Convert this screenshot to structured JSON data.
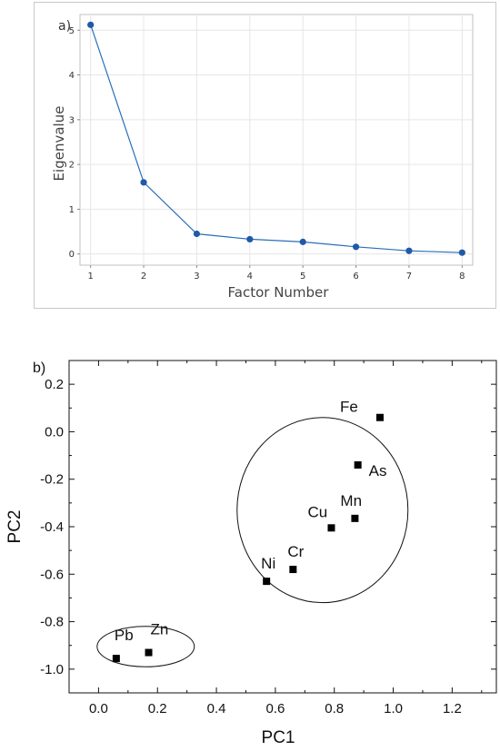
{
  "chart_data": [
    {
      "panel_label": "a)",
      "type": "line",
      "xlabel": "Factor Number",
      "ylabel": "Eigenvalue",
      "x": [
        1,
        2,
        3,
        4,
        5,
        6,
        7,
        8
      ],
      "values": [
        5.12,
        1.6,
        0.45,
        0.33,
        0.27,
        0.16,
        0.07,
        0.03
      ],
      "xlim": [
        0.8,
        8.2
      ],
      "ylim": [
        -0.25,
        5.35
      ],
      "xticks": [
        "1",
        "2",
        "3",
        "4",
        "5",
        "6",
        "7",
        "8"
      ],
      "yticks": [
        "0",
        "1",
        "2",
        "3",
        "4",
        "5"
      ],
      "grid": true,
      "color": "#2a6ebb"
    },
    {
      "panel_label": "b)",
      "type": "scatter",
      "xlabel": "PC1",
      "ylabel": "PC2",
      "xlim": [
        -0.1,
        1.35
      ],
      "ylim": [
        -1.1,
        0.3
      ],
      "xticks": [
        "0.0",
        "0.2",
        "0.4",
        "0.6",
        "0.8",
        "1.0",
        "1.2"
      ],
      "yticks": [
        "0.2",
        "0.0",
        "-0.2",
        "-0.4",
        "-0.6",
        "-0.8",
        "-1.0"
      ],
      "grid": false,
      "points": [
        {
          "label": "Fe",
          "x": 0.955,
          "y": 0.06
        },
        {
          "label": "As",
          "x": 0.88,
          "y": -0.14
        },
        {
          "label": "Mn",
          "x": 0.87,
          "y": -0.365
        },
        {
          "label": "Cu",
          "x": 0.79,
          "y": -0.405
        },
        {
          "label": "Cr",
          "x": 0.66,
          "y": -0.58
        },
        {
          "label": "Ni",
          "x": 0.57,
          "y": -0.63
        },
        {
          "label": "Pb",
          "x": 0.06,
          "y": -0.955
        },
        {
          "label": "Zn",
          "x": 0.17,
          "y": -0.93
        }
      ],
      "groups": [
        {
          "members": [
            "Fe",
            "As",
            "Mn",
            "Cu",
            "Cr",
            "Ni"
          ],
          "center": [
            0.76,
            -0.33
          ],
          "radius": [
            0.29,
            0.39
          ]
        },
        {
          "members": [
            "Pb",
            "Zn"
          ],
          "center": [
            0.16,
            -0.905
          ],
          "radius": [
            0.165,
            0.085
          ]
        }
      ]
    }
  ]
}
